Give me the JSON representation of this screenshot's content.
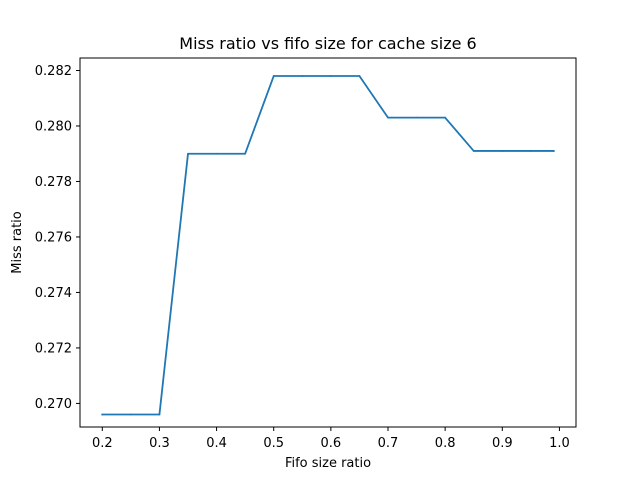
{
  "chart_data": {
    "type": "line",
    "title": "Miss ratio vs fifo size for cache size 6",
    "xlabel": "Fifo size ratio",
    "ylabel": "Miss ratio",
    "xlim": [
      0.161,
      1.029
    ],
    "ylim": [
      0.26915,
      0.28245
    ],
    "grid": false,
    "xticks": [
      0.2,
      0.3,
      0.4,
      0.5,
      0.6,
      0.7,
      0.8,
      0.9,
      1.0
    ],
    "xtick_labels": [
      "0.2",
      "0.3",
      "0.4",
      "0.5",
      "0.6",
      "0.7",
      "0.8",
      "0.9",
      "1.0"
    ],
    "yticks": [
      0.27,
      0.272,
      0.274,
      0.276,
      0.278,
      0.28,
      0.282
    ],
    "ytick_labels": [
      "0.270",
      "0.272",
      "0.274",
      "0.276",
      "0.278",
      "0.280",
      "0.282"
    ],
    "series": [
      {
        "name": "miss ratio",
        "color": "#1f77b4",
        "x": [
          0.2,
          0.25,
          0.3,
          0.35,
          0.4,
          0.45,
          0.5,
          0.55,
          0.6,
          0.65,
          0.7,
          0.75,
          0.8,
          0.85,
          0.9,
          0.95,
          0.99
        ],
        "y": [
          0.2696,
          0.2696,
          0.2696,
          0.279,
          0.279,
          0.279,
          0.2818,
          0.2818,
          0.2818,
          0.2818,
          0.2803,
          0.2803,
          0.2803,
          0.2791,
          0.2791,
          0.2791,
          0.2791
        ]
      }
    ]
  }
}
